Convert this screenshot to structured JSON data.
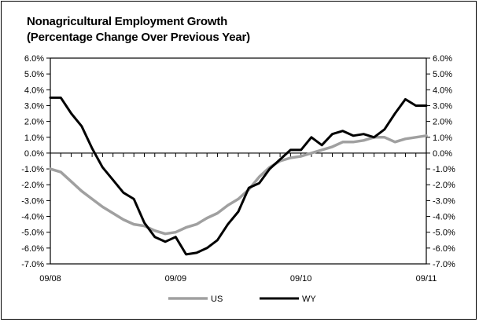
{
  "chart_data": {
    "type": "line",
    "title": "Nonagricultural Employment Growth",
    "subtitle": "(Percentage Change Over Previous Year)",
    "xlabel": "",
    "ylabel": "",
    "ylim": [
      -7.0,
      6.0
    ],
    "y_ticks": [
      "6.0%",
      "5.0%",
      "4.0%",
      "3.0%",
      "2.0%",
      "1.0%",
      "0.0%",
      "-1.0%",
      "-2.0%",
      "-3.0%",
      "-4.0%",
      "-5.0%",
      "-6.0%",
      "-7.0%"
    ],
    "x_tick_labels": [
      "09/08",
      "09/09",
      "09/10",
      "09/11"
    ],
    "x": [
      "09/08",
      "10/08",
      "11/08",
      "12/08",
      "01/09",
      "02/09",
      "03/09",
      "04/09",
      "05/09",
      "06/09",
      "07/09",
      "08/09",
      "09/09",
      "10/09",
      "11/09",
      "12/09",
      "01/10",
      "02/10",
      "03/10",
      "04/10",
      "05/10",
      "06/10",
      "07/10",
      "08/10",
      "09/10",
      "10/10",
      "11/10",
      "12/10",
      "01/11",
      "02/11",
      "03/11",
      "04/11",
      "05/11",
      "06/11",
      "07/11",
      "08/11",
      "09/11"
    ],
    "grid": false,
    "legend_position": "bottom",
    "series": [
      {
        "name": "US",
        "color": "#a0a0a0",
        "values": [
          -1.0,
          -1.2,
          -1.8,
          -2.4,
          -2.9,
          -3.4,
          -3.8,
          -4.2,
          -4.5,
          -4.6,
          -4.9,
          -5.1,
          -5.0,
          -4.7,
          -4.5,
          -4.1,
          -3.8,
          -3.3,
          -2.9,
          -2.3,
          -1.5,
          -0.9,
          -0.5,
          -0.3,
          -0.2,
          0.0,
          0.2,
          0.4,
          0.7,
          0.7,
          0.8,
          1.0,
          1.0,
          0.7,
          0.9,
          1.0,
          1.1
        ]
      },
      {
        "name": "WY",
        "color": "#000000",
        "values": [
          3.5,
          3.5,
          2.5,
          1.7,
          0.3,
          -0.9,
          -1.7,
          -2.5,
          -2.9,
          -4.4,
          -5.3,
          -5.6,
          -5.3,
          -6.4,
          -6.3,
          -6.0,
          -5.5,
          -4.5,
          -3.7,
          -2.2,
          -1.9,
          -1.0,
          -0.4,
          0.2,
          0.2,
          1.0,
          0.5,
          1.2,
          1.4,
          1.1,
          1.2,
          1.0,
          1.5,
          2.5,
          3.4,
          3.0,
          3.0
        ]
      }
    ]
  }
}
